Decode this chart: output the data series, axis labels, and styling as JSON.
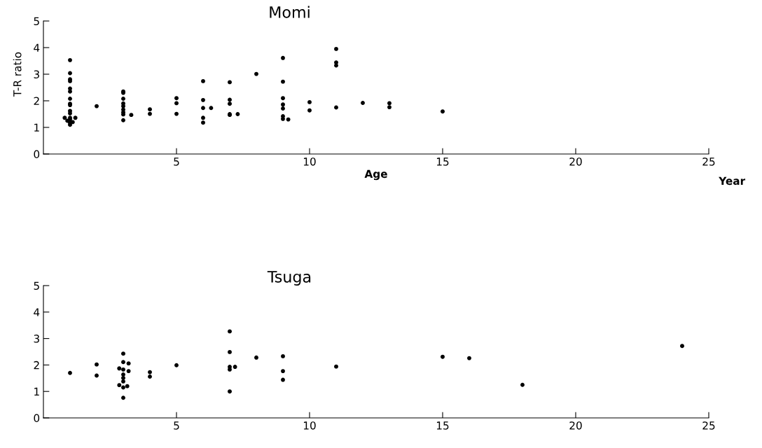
{
  "chart_data": [
    {
      "type": "scatter",
      "title": "Momi",
      "xlabel": "Age",
      "ylabel": "T-R ratio",
      "annotations": [
        "Year"
      ],
      "xlim": [
        0,
        25
      ],
      "xticks": [
        5,
        10,
        15,
        20,
        25
      ],
      "ylim": [
        0,
        5
      ],
      "yticks": [
        0,
        1,
        2,
        3,
        4,
        5
      ],
      "marker": "circle",
      "grid": false,
      "legend": false,
      "series": [
        {
          "color": "#000000",
          "x": [
            1,
            1,
            1,
            1,
            1,
            1,
            1,
            1,
            1,
            1,
            1,
            1,
            1,
            1,
            1,
            0.8,
            1.2,
            0.9,
            1.1,
            2,
            3,
            3,
            3,
            3,
            3,
            3,
            3,
            3.3,
            3,
            3,
            4,
            4,
            5,
            5,
            5,
            6,
            6,
            6,
            6.3,
            6,
            6,
            7,
            7,
            7,
            7,
            7.3,
            7,
            8,
            9,
            9,
            9,
            9,
            9,
            9,
            9,
            9.2,
            10,
            10,
            11,
            11,
            11,
            11,
            12,
            13,
            13,
            15
          ],
          "values": [
            3.53,
            3.04,
            2.81,
            2.74,
            2.46,
            2.35,
            2.08,
            1.89,
            1.84,
            1.62,
            1.53,
            1.36,
            1.3,
            1.18,
            1.1,
            1.36,
            1.36,
            1.25,
            1.2,
            1.8,
            2.35,
            2.3,
            2.08,
            1.9,
            1.8,
            1.67,
            1.57,
            1.47,
            1.49,
            1.27,
            1.68,
            1.51,
            2.1,
            1.91,
            1.51,
            2.74,
            2.03,
            1.73,
            1.73,
            1.36,
            1.18,
            2.7,
            2.04,
            1.89,
            1.5,
            1.5,
            1.47,
            3.01,
            3.61,
            2.72,
            2.1,
            1.86,
            1.71,
            1.42,
            1.32,
            1.3,
            1.95,
            1.64,
            3.95,
            3.44,
            3.33,
            1.75,
            1.92,
            1.91,
            1.76,
            1.6
          ]
        }
      ]
    },
    {
      "type": "scatter",
      "title": "Tsuga",
      "xlim": [
        0,
        25
      ],
      "xticks": [
        5,
        10,
        15,
        20,
        25
      ],
      "ylim": [
        0,
        5
      ],
      "yticks": [
        0,
        1,
        2,
        3,
        4,
        5
      ],
      "marker": "circle",
      "grid": false,
      "legend": false,
      "series": [
        {
          "color": "#000000",
          "x": [
            1,
            2,
            2,
            3,
            3,
            3.2,
            2.85,
            3,
            3.2,
            3,
            3,
            3,
            2.85,
            3.15,
            3,
            3,
            4,
            4,
            5,
            7,
            7,
            7,
            7.2,
            7,
            7,
            8,
            9,
            9,
            9,
            11,
            15,
            16,
            18,
            24
          ],
          "values": [
            1.7,
            2.02,
            1.6,
            2.43,
            2.11,
            2.06,
            1.87,
            1.83,
            1.77,
            1.64,
            1.51,
            1.38,
            1.24,
            1.2,
            1.15,
            0.76,
            1.73,
            1.56,
            1.99,
            3.27,
            2.49,
            1.93,
            1.93,
            1.83,
            1.0,
            2.28,
            2.33,
            1.77,
            1.44,
            1.94,
            2.31,
            2.26,
            1.25,
            2.72
          ]
        }
      ]
    }
  ]
}
